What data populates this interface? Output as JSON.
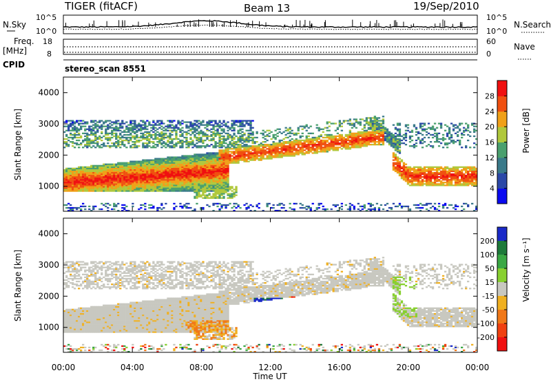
{
  "header": {
    "title": "TIGER (fitACF)",
    "beam": "Beam 13",
    "date": "19/Sep/2010"
  },
  "panels": {
    "noise": {
      "left_label": "N.Sky",
      "left_ticks": [
        "10^5",
        "10^0"
      ],
      "right_ticks": [
        "10^5",
        "10^0"
      ],
      "right_label": "N.Search"
    },
    "freq": {
      "left_label_1": "Freq.",
      "left_label_2": "[MHz]",
      "left_ticks": [
        "18",
        "8"
      ],
      "right_ticks": [
        "60",
        "0"
      ],
      "right_label": "Nave"
    },
    "cpid": {
      "label": "CPID",
      "value": "stereo_scan 8551"
    }
  },
  "chart_data": [
    {
      "type": "heatmap",
      "name": "power",
      "ylabel": "Slant Range [km]",
      "ylim": [
        200,
        4500
      ],
      "y_ticks": [
        "1000",
        "2000",
        "3000",
        "4000"
      ],
      "colorbar": {
        "label": "Power [dB]",
        "ticks": [
          "4",
          "8",
          "12",
          "16",
          "20",
          "24",
          "28"
        ],
        "range": [
          0,
          32
        ],
        "colors": [
          "#0a0af0",
          "#2b48a8",
          "#3a7a8a",
          "#4aa06e",
          "#b0c83c",
          "#f0a018",
          "#f05010",
          "#f01010"
        ]
      }
    },
    {
      "type": "heatmap",
      "name": "velocity",
      "ylabel": "Slant Range [km]",
      "ylim": [
        200,
        4500
      ],
      "y_ticks": [
        "1000",
        "2000",
        "3000",
        "4000"
      ],
      "colorbar": {
        "label": "Velocity [m s⁻¹]",
        "ticks": [
          "200",
          "100",
          "50",
          "15",
          "-15",
          "-50",
          "-100",
          "-200"
        ],
        "colors": [
          "#1a2ac8",
          "#1e7a3a",
          "#3aa844",
          "#88d030",
          "#c8c8c0",
          "#f0b020",
          "#f07818",
          "#f04010",
          "#f01010"
        ]
      }
    }
  ],
  "xaxis": {
    "label": "Time UT",
    "ticks": [
      "00:00",
      "04:00",
      "08:00",
      "12:00",
      "16:00",
      "20:00",
      "00:00"
    ]
  }
}
